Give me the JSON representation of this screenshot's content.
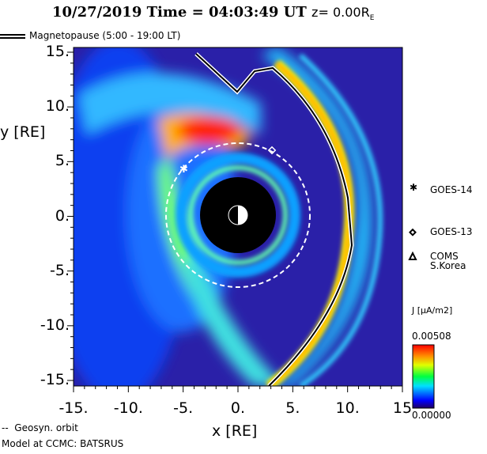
{
  "title": {
    "date": "10/27/2019",
    "time_label": "Time = 04:03:49 UT",
    "z_label": "z= 0.00R",
    "z_sub": "E"
  },
  "legend": {
    "magnetopause": "Magnetopause (5:00 - 19:00 LT)",
    "geosync": "Geosyn. orbit"
  },
  "footer": "Model at CCMC: BATSRUS",
  "satellites": [
    {
      "name": "GOES-14",
      "symbol": "asterisk"
    },
    {
      "name": "GOES-13",
      "symbol": "diamond"
    },
    {
      "name": "COMS",
      "name2": "S.Korea",
      "symbol": "triangle"
    }
  ],
  "chart_data": {
    "type": "heatmap",
    "title": "10/27/2019 Time = 04:03:49 UT z= 0.00 RE",
    "xlabel": "x [RE]",
    "ylabel": "y [RE]",
    "xlim": [
      -15,
      15
    ],
    "ylim": [
      -15,
      15
    ],
    "xticks": [
      "-15.",
      "-10.",
      "-5.",
      "0.",
      "5.",
      "10.",
      "15"
    ],
    "yticks": [
      "15.",
      "10.",
      "5.",
      "0.",
      "-5.",
      "-10.",
      "-15."
    ],
    "colorbar": {
      "label": "J [µA/m2]",
      "max": "0.00508",
      "min": "0.00000",
      "colormap": "rainbow"
    },
    "geosync_radius": 6.6,
    "inner_boundary_radius": 3.5
  },
  "colors": {
    "background": "#2a20a8",
    "geosync": "#ffffff",
    "magnetopause": "#000000"
  }
}
